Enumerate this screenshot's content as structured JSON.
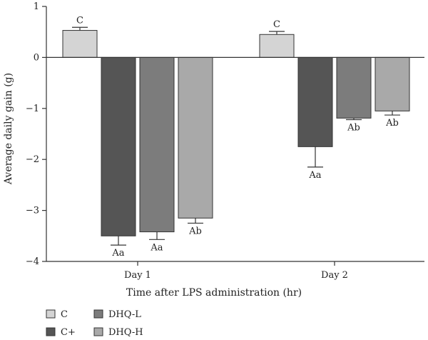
{
  "chart_data": {
    "type": "bar",
    "title": "",
    "xlabel": "Time after LPS administration (hr)",
    "ylabel": "Average daily gain (g)",
    "ylim": [
      -4,
      1
    ],
    "yticks": [
      1,
      0,
      -1,
      -2,
      -3,
      -4
    ],
    "ytick_labels": [
      "1",
      "0",
      "−1",
      "−2",
      "−3",
      "−4"
    ],
    "categories": [
      "Day 1",
      "Day 2"
    ],
    "grid": false,
    "legend_position": "bottom-left",
    "series": [
      {
        "name": "C",
        "color": "#d4d4d4",
        "values": [
          0.53,
          0.45
        ],
        "errors": [
          0.06,
          0.06
        ],
        "labels": [
          "C",
          "C"
        ]
      },
      {
        "name": "C+",
        "color": "#555555",
        "values": [
          -3.5,
          -1.75
        ],
        "errors": [
          0.18,
          0.4
        ],
        "labels": [
          "Aa",
          "Aa"
        ]
      },
      {
        "name": "DHQ-L",
        "color": "#7c7c7c",
        "values": [
          -3.42,
          -1.19
        ],
        "errors": [
          0.15,
          0.03
        ],
        "labels": [
          "Aa",
          "Ab"
        ]
      },
      {
        "name": "DHQ-H",
        "color": "#a9a9a9",
        "values": [
          -3.15,
          -1.05
        ],
        "errors": [
          0.1,
          0.08
        ],
        "labels": [
          "Ab",
          "Ab"
        ]
      }
    ]
  }
}
